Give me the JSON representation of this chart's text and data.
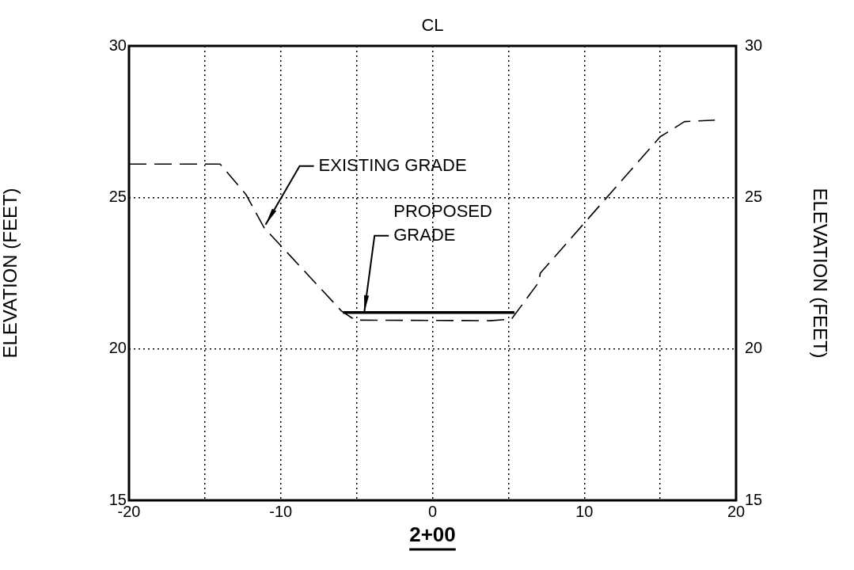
{
  "chart_data": {
    "type": "line",
    "title": "CL",
    "xlabel": "2+00",
    "ylabel": "ELEVATION (FEET)",
    "y2label": "ELEVATION (FEET)",
    "series": [
      {
        "color": "#000000",
        "line_style": "dashed",
        "x": [
          -20,
          -14,
          -12.3,
          -11.1,
          -6,
          -5.1,
          3.8,
          5.2,
          7,
          7.1,
          15,
          16.6,
          18.6
        ],
        "values": [
          26.1,
          26.1,
          25.1,
          24,
          21.25,
          20.95,
          20.93,
          20.98,
          22.2,
          22.5,
          27,
          27.5,
          27.55
        ]
      },
      {
        "color": "#000000",
        "line_style": "solid",
        "x": [
          -5.9,
          5.4
        ],
        "values": [
          21.2,
          21.2
        ]
      }
    ],
    "annotations": [
      {
        "text": "EXISTING GRADE",
        "x": -11,
        "y": 24.1
      },
      {
        "text": "PROPOSED GRADE",
        "x": -4.5,
        "y": 21.2
      }
    ],
    "xlim": [
      -20,
      20
    ],
    "xticks": [
      -20,
      {
        "value": -15,
        "label": null
      },
      -10,
      {
        "value": -5,
        "label": null
      },
      0,
      {
        "value": 5,
        "label": null
      },
      10,
      {
        "value": 15,
        "label": null
      },
      20
    ],
    "ylim": [
      15,
      30
    ],
    "yticks": [
      15,
      20,
      25,
      30
    ],
    "y2lim": [
      15,
      30
    ],
    "y2ticks": [
      15,
      20,
      25,
      30
    ],
    "grid": true
  }
}
